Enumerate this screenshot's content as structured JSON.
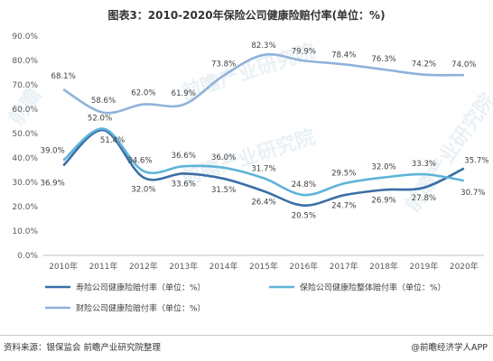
{
  "header": {
    "title": "图表3：2010-2020年保险公司健康险赔付率(单位：%)"
  },
  "footer": {
    "source": "资料来源：银保监会 前瞻产业研究院整理",
    "brand": "@前瞻经济学人APP"
  },
  "chart_data": {
    "type": "line",
    "title": "图表3：2010-2020年保险公司健康险赔付率(单位：%)",
    "categories": [
      "2010年",
      "2011年",
      "2012年",
      "2013年",
      "2014年",
      "2015年",
      "2016年",
      "2017年",
      "2018年",
      "2019年",
      "2020年"
    ],
    "ylim": [
      0,
      90
    ],
    "yticks": [
      "0.0%",
      "10.0%",
      "20.0%",
      "30.0%",
      "40.0%",
      "50.0%",
      "60.0%",
      "70.0%",
      "80.0%",
      "90.0%"
    ],
    "ytick_values": [
      0,
      10,
      20,
      30,
      40,
      50,
      60,
      70,
      80,
      90
    ],
    "grid": false,
    "legend_position": "bottom",
    "series": [
      {
        "name": "寿险公司健康险赔付率（单位：%）",
        "color": "#3a6ea5",
        "values": [
          36.9,
          51.4,
          32.0,
          33.6,
          31.5,
          26.4,
          20.5,
          24.7,
          26.9,
          27.8,
          35.7
        ],
        "labels": [
          "36.9%",
          "51.4%",
          "32.0%",
          "33.6%",
          "31.5%",
          "26.4%",
          "20.5%",
          "24.7%",
          "26.9%",
          "27.8%",
          "35.7%"
        ]
      },
      {
        "name": "保险公司健康险整体赔付率（单位：%）",
        "color": "#5fb3d9",
        "values": [
          39.0,
          52.0,
          34.6,
          36.6,
          36.0,
          31.7,
          24.8,
          29.5,
          32.0,
          33.3,
          30.7
        ],
        "labels": [
          "39.0%",
          "52.0%",
          "34.6%",
          "36.6%",
          "36.0%",
          "31.7%",
          "24.8%",
          "29.5%",
          "32.0%",
          "33.3%",
          "30.7%"
        ]
      },
      {
        "name": "财险公司健康险赔付率（单位：%）",
        "color": "#8fb2da",
        "values": [
          68.1,
          58.6,
          62.0,
          61.9,
          73.8,
          82.3,
          79.9,
          78.4,
          76.3,
          74.2,
          74.0
        ],
        "labels": [
          "68.1%",
          "58.6%",
          "62.0%",
          "61.9%",
          "73.8%",
          "82.3%",
          "79.9%",
          "78.4%",
          "76.3%",
          "74.2%",
          "74.0%"
        ]
      }
    ]
  }
}
